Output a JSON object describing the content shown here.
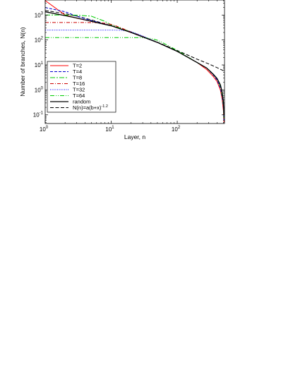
{
  "chart_data": {
    "type": "line",
    "xscale": "log",
    "yscale": "log",
    "xlabel": "Layer, n",
    "ylabel": "Number of branches, N(n)",
    "xlim": [
      1,
      520
    ],
    "ylim": [
      0.045,
      4000
    ],
    "legend_position": "bottom-left",
    "x_ticks": [
      {
        "value": 1,
        "base": "10",
        "exp": "0"
      },
      {
        "value": 10,
        "base": "10",
        "exp": "1"
      },
      {
        "value": 100,
        "base": "10",
        "exp": "2"
      }
    ],
    "y_ticks": [
      {
        "value": 0.1,
        "base": "10",
        "exp": "-1"
      },
      {
        "value": 1,
        "base": "10",
        "exp": "0"
      },
      {
        "value": 10,
        "base": "10",
        "exp": "1"
      },
      {
        "value": 100,
        "base": "10",
        "exp": "2"
      },
      {
        "value": 1000,
        "base": "10",
        "exp": "3"
      }
    ],
    "series": [
      {
        "name": "T=2",
        "color": "#ff0000",
        "dash": "",
        "x": [
          1,
          2,
          3,
          5,
          10,
          20,
          50,
          100,
          200,
          280,
          350,
          400,
          450,
          480,
          500,
          510
        ],
        "y": [
          3800,
          1000,
          750,
          560,
          370,
          200,
          80,
          35,
          12.5,
          6.5,
          3.5,
          2.2,
          1.0,
          0.4,
          0.15,
          0.05
        ]
      },
      {
        "name": "T=4",
        "color": "#0000cc",
        "dash": "4,2",
        "x": [
          1,
          2,
          3,
          5,
          10,
          20,
          50,
          100,
          200,
          280,
          350,
          400,
          450,
          480,
          500,
          510
        ],
        "y": [
          2000,
          1350,
          900,
          600,
          375,
          200,
          80,
          35,
          12.5,
          7.5,
          4.0,
          2.5,
          1.2,
          0.5,
          0.2,
          0.06
        ]
      },
      {
        "name": "T=8",
        "color": "#00cc00",
        "dash": "7,2,2,2",
        "x": [
          1,
          2,
          3,
          5,
          8,
          10,
          20,
          50,
          100,
          200,
          280,
          350,
          400,
          450,
          480,
          500,
          510
        ],
        "y": [
          1000,
          1000,
          990,
          900,
          560,
          400,
          210,
          80,
          35,
          12.5,
          7.5,
          4.2,
          2.8,
          1.4,
          0.6,
          0.25,
          0.07
        ]
      },
      {
        "name": "T=16",
        "color": "#cc0000",
        "dash": "5,2,1,2",
        "x": [
          1,
          2,
          4,
          6,
          8,
          10,
          12,
          20,
          50,
          100,
          200,
          280,
          350,
          400,
          450,
          480,
          500,
          510
        ],
        "y": [
          500,
          500,
          500,
          495,
          470,
          420,
          360,
          210,
          80,
          35,
          12.5,
          7.5,
          4.2,
          2.8,
          1.5,
          0.7,
          0.3,
          0.08
        ]
      },
      {
        "name": "T=32",
        "color": "#0000ff",
        "dash": "1,1.5",
        "x": [
          1,
          4,
          8,
          12,
          16,
          20,
          25,
          30,
          50,
          100,
          200,
          280,
          350,
          400,
          450,
          480,
          500,
          510
        ],
        "y": [
          250,
          250,
          250,
          248,
          240,
          215,
          175,
          145,
          80,
          35,
          12.5,
          7.5,
          4.2,
          2.8,
          1.5,
          0.7,
          0.3,
          0.08
        ]
      },
      {
        "name": "T=64",
        "color": "#00cc00",
        "dash": "6,2,1,2,1,2",
        "x": [
          1,
          10,
          20,
          30,
          40,
          50,
          60,
          80,
          100,
          200,
          280,
          350,
          400,
          450,
          480,
          500,
          510
        ],
        "y": [
          125,
          125,
          125,
          123,
          115,
          98,
          78,
          52,
          38,
          12.5,
          7.5,
          4.2,
          2.8,
          1.5,
          0.7,
          0.3,
          0.08
        ]
      },
      {
        "name": "random",
        "color": "#000000",
        "dash": "",
        "x": [
          1,
          2,
          3,
          5,
          10,
          20,
          50,
          100,
          200,
          280,
          350,
          400,
          450,
          480,
          500,
          510
        ],
        "y": [
          1350,
          950,
          760,
          560,
          370,
          200,
          80,
          35,
          12.5,
          7.5,
          4.3,
          2.9,
          1.6,
          0.8,
          0.35,
          0.1
        ]
      },
      {
        "name": "N(n)=a(b+x)^-1.2",
        "color": "#000000",
        "dash": "5,2.5",
        "x": [
          1,
          2,
          3,
          5,
          10,
          20,
          50,
          100,
          200,
          300,
          400,
          520
        ],
        "y": [
          1520,
          1140,
          900,
          640,
          375,
          203,
          82,
          38,
          17,
          11,
          7.8,
          5.6
        ]
      }
    ],
    "legend": [
      {
        "label": "T=2"
      },
      {
        "label": "T=4"
      },
      {
        "label": "T=8"
      },
      {
        "label": "T=16"
      },
      {
        "label": "T=32"
      },
      {
        "label": "T=64"
      },
      {
        "label": "random"
      },
      {
        "label_main": "N(n)=a(b+x)",
        "label_sup": "-1.2"
      }
    ]
  }
}
